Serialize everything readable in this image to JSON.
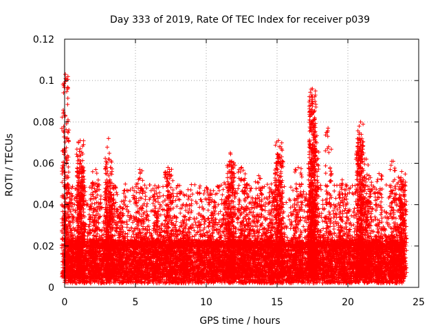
{
  "chart_data": {
    "type": "scatter",
    "title": "Day 333 of 2019, Rate Of TEC Index for receiver p039",
    "xlabel": "GPS time / hours",
    "ylabel": "ROTI / TECUs",
    "xlim": [
      0,
      25
    ],
    "ylim": [
      0,
      0.12
    ],
    "xticks": [
      "0",
      "5",
      "10",
      "15",
      "20",
      "25"
    ],
    "yticks": [
      "0",
      "0.02",
      "0.04",
      "0.06",
      "0.08",
      "0.1",
      "0.12"
    ],
    "grid": true,
    "marker": "+",
    "series": [
      {
        "name": "ROTI",
        "color": "#ff0000",
        "data_extent_hours": [
          0,
          24
        ],
        "baseline_range": [
          0.005,
          0.02
        ],
        "notable_points": [
          {
            "x": 0.05,
            "y": 0.103
          },
          {
            "x": 0.05,
            "y": 0.066
          },
          {
            "x": 0.2,
            "y": 0.05
          },
          {
            "x": 1.1,
            "y": 0.071
          },
          {
            "x": 1.1,
            "y": 0.067
          },
          {
            "x": 1.1,
            "y": 0.06
          },
          {
            "x": 1.15,
            "y": 0.057
          },
          {
            "x": 1.2,
            "y": 0.055
          },
          {
            "x": 2.0,
            "y": 0.046
          },
          {
            "x": 2.2,
            "y": 0.057
          },
          {
            "x": 3.1,
            "y": 0.072
          },
          {
            "x": 3.1,
            "y": 0.062
          },
          {
            "x": 3.2,
            "y": 0.052
          },
          {
            "x": 3.3,
            "y": 0.045
          },
          {
            "x": 3.9,
            "y": 0.039
          },
          {
            "x": 5.3,
            "y": 0.057
          },
          {
            "x": 6.5,
            "y": 0.048
          },
          {
            "x": 7.3,
            "y": 0.058
          },
          {
            "x": 7.4,
            "y": 0.057
          },
          {
            "x": 8.6,
            "y": 0.04
          },
          {
            "x": 10.4,
            "y": 0.045
          },
          {
            "x": 11.5,
            "y": 0.053
          },
          {
            "x": 11.7,
            "y": 0.065
          },
          {
            "x": 11.8,
            "y": 0.061
          },
          {
            "x": 11.75,
            "y": 0.059
          },
          {
            "x": 12.5,
            "y": 0.058
          },
          {
            "x": 12.9,
            "y": 0.05
          },
          {
            "x": 13.7,
            "y": 0.054
          },
          {
            "x": 14.6,
            "y": 0.05
          },
          {
            "x": 15.1,
            "y": 0.071
          },
          {
            "x": 15.15,
            "y": 0.068
          },
          {
            "x": 15.2,
            "y": 0.064
          },
          {
            "x": 15.1,
            "y": 0.061
          },
          {
            "x": 16.5,
            "y": 0.058
          },
          {
            "x": 17.5,
            "y": 0.096
          },
          {
            "x": 17.5,
            "y": 0.092
          },
          {
            "x": 17.5,
            "y": 0.089
          },
          {
            "x": 17.45,
            "y": 0.086
          },
          {
            "x": 17.6,
            "y": 0.074
          },
          {
            "x": 17.65,
            "y": 0.068
          },
          {
            "x": 17.7,
            "y": 0.066
          },
          {
            "x": 17.4,
            "y": 0.062
          },
          {
            "x": 18.6,
            "y": 0.077
          },
          {
            "x": 19.6,
            "y": 0.052
          },
          {
            "x": 20.9,
            "y": 0.08
          },
          {
            "x": 20.8,
            "y": 0.078
          },
          {
            "x": 20.85,
            "y": 0.071
          },
          {
            "x": 20.9,
            "y": 0.069
          },
          {
            "x": 21.1,
            "y": 0.065
          },
          {
            "x": 21.2,
            "y": 0.062
          },
          {
            "x": 21.5,
            "y": 0.054
          },
          {
            "x": 22.2,
            "y": 0.055
          },
          {
            "x": 23.2,
            "y": 0.061
          },
          {
            "x": 23.8,
            "y": 0.056
          },
          {
            "x": 23.9,
            "y": 0.052
          },
          {
            "x": 23.85,
            "y": 0.05
          }
        ]
      }
    ]
  }
}
